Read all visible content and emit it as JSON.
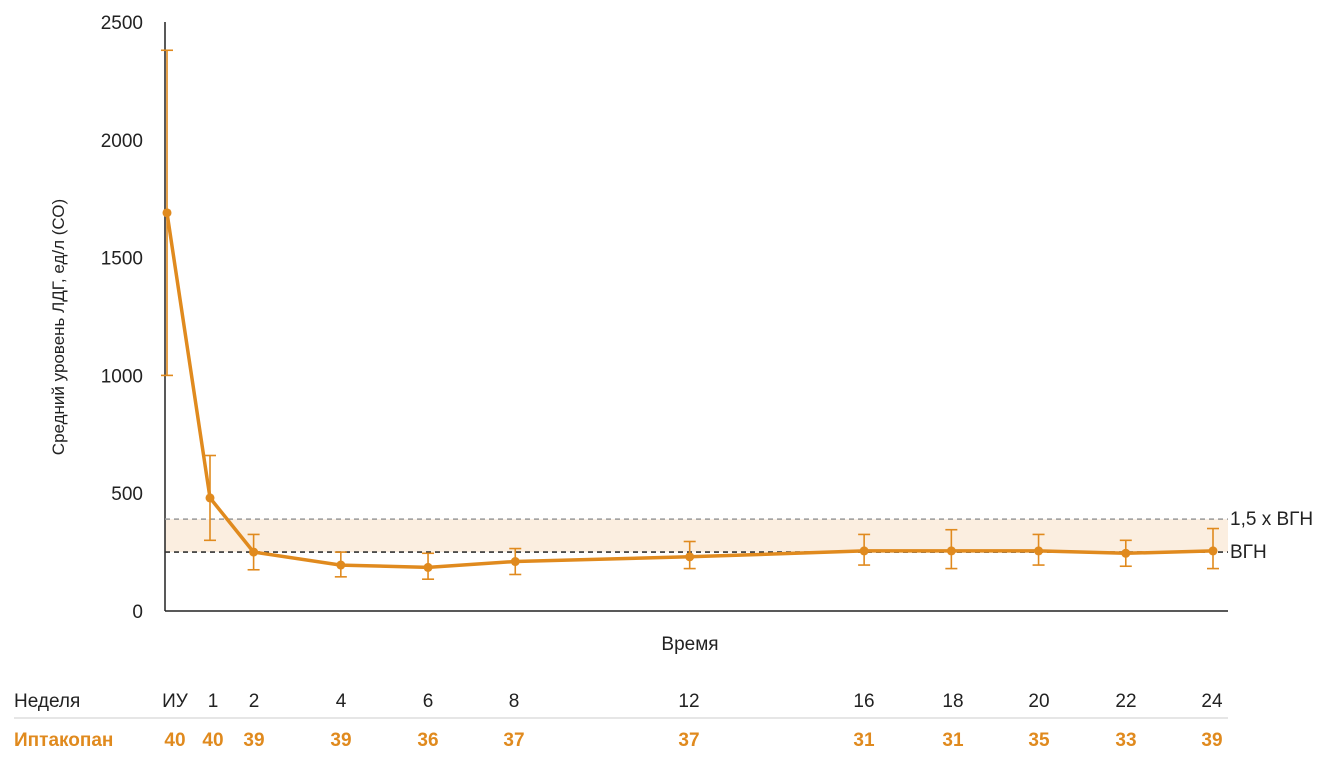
{
  "chart_data": {
    "type": "line",
    "ylabel": "Средний уровень ЛДГ, ед/л (СО)",
    "xlabel": "Время",
    "ylim": [
      0,
      2500
    ],
    "yticks": [
      0,
      500,
      1000,
      1500,
      2000,
      2500
    ],
    "grid": false,
    "colors": {
      "series": "#e08a1e",
      "band": "#fbeee0",
      "ref_line": "#333333",
      "ref_line_upper": "#999999"
    },
    "x": [
      "ИУ",
      "1",
      "2",
      "4",
      "6",
      "8",
      "12",
      "16",
      "18",
      "20",
      "22",
      "24"
    ],
    "x_weeks": [
      -1,
      1,
      2,
      4,
      6,
      8,
      12,
      16,
      18,
      20,
      22,
      24
    ],
    "series": [
      {
        "values": [
          1690,
          480,
          250,
          195,
          185,
          210,
          230,
          255,
          255,
          255,
          245,
          255
        ],
        "error_low": [
          1000,
          300,
          175,
          145,
          135,
          155,
          180,
          195,
          180,
          195,
          190,
          180
        ],
        "error_high": [
          2380,
          660,
          325,
          250,
          245,
          265,
          295,
          325,
          345,
          325,
          300,
          350
        ]
      }
    ],
    "reference_lines": [
      {
        "label": "1,5 x ВГН",
        "value": 390,
        "style": "dashed"
      },
      {
        "label": "ВГН",
        "value": 250,
        "style": "dashed"
      }
    ],
    "band": [
      250,
      390
    ]
  },
  "table": {
    "week_label": "Неделя",
    "weeks": [
      "ИУ",
      "1",
      "2",
      "4",
      "6",
      "8",
      "12",
      "16",
      "18",
      "20",
      "22",
      "24"
    ],
    "n_label": "Иптакопан",
    "n_values": [
      "40",
      "40",
      "39",
      "39",
      "36",
      "37",
      "37",
      "31",
      "31",
      "35",
      "33",
      "39"
    ]
  }
}
